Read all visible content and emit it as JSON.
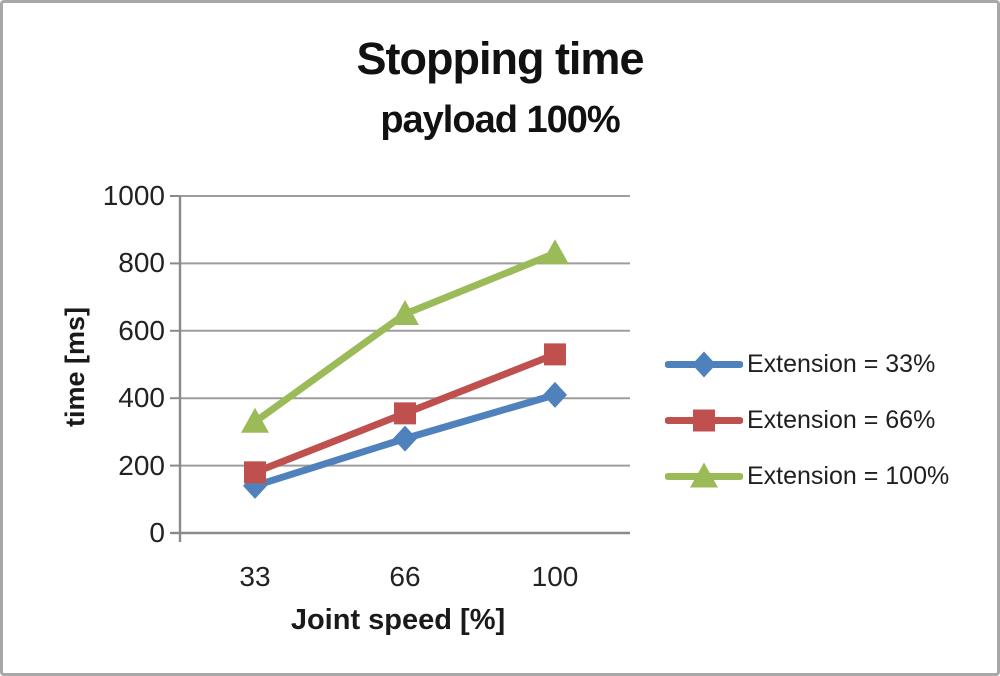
{
  "chart_data": {
    "type": "line",
    "title": "Stopping time",
    "subtitle": "payload 100%",
    "xlabel": "Joint speed [%]",
    "ylabel": "time [ms]",
    "categories": [
      "33",
      "66",
      "100"
    ],
    "series": [
      {
        "name": "Extension = 33%",
        "values": [
          140,
          280,
          410
        ],
        "color": "#4F81BD",
        "marker": "diamond"
      },
      {
        "name": "Extension = 66%",
        "values": [
          180,
          355,
          530
        ],
        "color": "#C0504D",
        "marker": "square"
      },
      {
        "name": "Extension = 100%",
        "values": [
          330,
          650,
          830
        ],
        "color": "#9BBB59",
        "marker": "triangle"
      }
    ],
    "ylim": [
      0,
      1000
    ],
    "y_ticks": [
      "0",
      "200",
      "400",
      "600",
      "800",
      "1000"
    ],
    "grid": true,
    "legend_position": "right",
    "style": {
      "gridline_color": "#9d9d9d",
      "axis_color": "#8a8a8a",
      "text_color": "#222222",
      "frame_border_color": "#a8a8a8"
    }
  }
}
